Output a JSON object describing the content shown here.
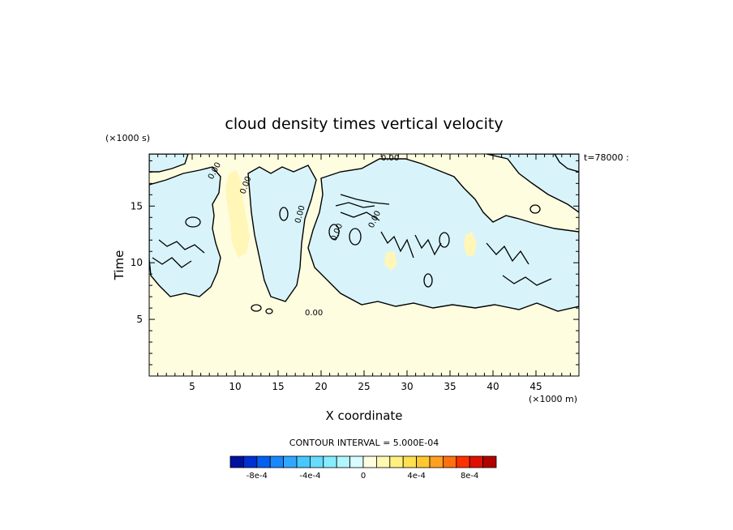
{
  "chart_data": {
    "type": "heatmap",
    "title": "cloud density times vertical velocity",
    "xlabel": "X coordinate",
    "ylabel": "Time",
    "x_scale_label": "(×1000 m)",
    "y_scale_label": "(×1000 s)",
    "xlim": [
      0,
      50
    ],
    "ylim": [
      0,
      19.6
    ],
    "x_ticks": [
      5,
      10,
      15,
      20,
      25,
      30,
      35,
      40,
      45
    ],
    "x_tick_labels": [
      "5",
      "10",
      "15",
      "20",
      "25",
      "30",
      "35",
      "40",
      "45"
    ],
    "y_ticks": [
      5,
      10,
      15
    ],
    "y_tick_labels": [
      "5",
      "10",
      "15"
    ],
    "time_annotation": "t=78000 :",
    "contour_interval_label": "CONTOUR INTERVAL = 5.000E-04",
    "contour_line_label": "0.00",
    "colorbar": {
      "levels": [
        -0.00095,
        -0.00085,
        -0.00075,
        -0.00065,
        -0.00055,
        -0.00045,
        -0.00035,
        -0.00025,
        -0.00015,
        -5e-05,
        5e-05,
        0.00015,
        0.00025,
        0.00035,
        0.00045,
        0.00055,
        0.00065,
        0.00075,
        0.00085,
        0.00095
      ],
      "colors": [
        "#0010a0",
        "#0030d0",
        "#0060f0",
        "#1888ff",
        "#30a8ff",
        "#48c8ff",
        "#66dcff",
        "#88ecff",
        "#b0f6ff",
        "#d8fcff",
        "#fffde0",
        "#fff8b0",
        "#fff080",
        "#ffe050",
        "#ffc830",
        "#ffa020",
        "#ff7010",
        "#ff3000",
        "#e01000",
        "#b00000"
      ],
      "tick_values": [
        -0.0008,
        -0.0004,
        0,
        0.0004,
        0.0008
      ],
      "tick_labels": [
        "-8e-4",
        "-4e-4",
        "0",
        "4e-4",
        "8e-4"
      ]
    },
    "field_regions": [
      {
        "level": "weak-negative",
        "color": "#d8f4fa"
      },
      {
        "level": "near-zero-positive",
        "color": "#fffde0"
      },
      {
        "level": "weak-positive",
        "color": "#fff6b8"
      }
    ]
  }
}
